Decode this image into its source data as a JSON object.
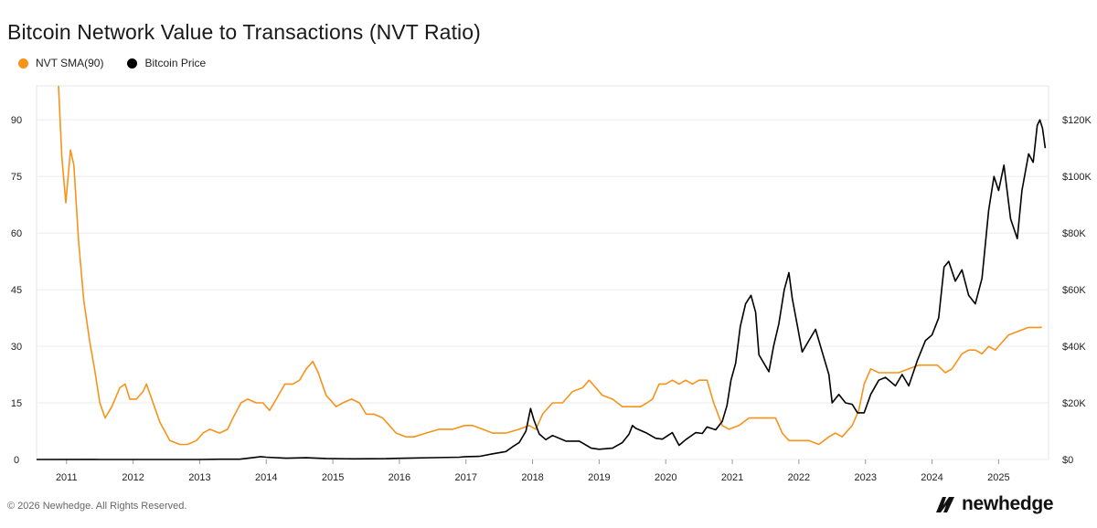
{
  "page": {
    "title": "Bitcoin Network Value to Transactions (NVT Ratio)",
    "copyright": "© 2026 Newhedge. All Rights Reserved.",
    "brand": "newhedge"
  },
  "legend": [
    {
      "label": "NVT SMA(90)",
      "color": "#f7931a"
    },
    {
      "label": "Bitcoin Price",
      "color": "#000000"
    }
  ],
  "chart_data": {
    "type": "line",
    "title": "Bitcoin Network Value to Transactions (NVT Ratio)",
    "x_ticks": [
      "2011",
      "2012",
      "2013",
      "2014",
      "2015",
      "2016",
      "2017",
      "2018",
      "2019",
      "2020",
      "2021",
      "2022",
      "2023",
      "2024",
      "2025"
    ],
    "y_left_ticks": [
      "0",
      "15",
      "30",
      "45",
      "60",
      "75",
      "90"
    ],
    "y_right_ticks": [
      "$0",
      "$20K",
      "$40K",
      "$60K",
      "$80K",
      "$100K",
      "$120K"
    ],
    "y_left_range": [
      0,
      99
    ],
    "y_right_range": [
      0,
      132000
    ],
    "x_range": [
      2010.55,
      2025.75
    ],
    "grid": true,
    "legend_position": "top-left",
    "series": [
      {
        "name": "NVT SMA(90)",
        "axis": "left",
        "color": "#f7931a",
        "points": [
          [
            2010.88,
            99
          ],
          [
            2010.93,
            80
          ],
          [
            2010.99,
            68
          ],
          [
            2011.06,
            82
          ],
          [
            2011.11,
            78
          ],
          [
            2011.18,
            58
          ],
          [
            2011.26,
            42
          ],
          [
            2011.35,
            31
          ],
          [
            2011.42,
            24
          ],
          [
            2011.5,
            15
          ],
          [
            2011.58,
            11
          ],
          [
            2011.68,
            14
          ],
          [
            2011.8,
            19
          ],
          [
            2011.88,
            20
          ],
          [
            2011.95,
            16
          ],
          [
            2012.05,
            16
          ],
          [
            2012.15,
            18
          ],
          [
            2012.2,
            20
          ],
          [
            2012.28,
            16
          ],
          [
            2012.4,
            10
          ],
          [
            2012.55,
            5
          ],
          [
            2012.7,
            4
          ],
          [
            2012.82,
            4
          ],
          [
            2012.95,
            5
          ],
          [
            2013.05,
            7
          ],
          [
            2013.15,
            8
          ],
          [
            2013.3,
            7
          ],
          [
            2013.42,
            8
          ],
          [
            2013.5,
            11
          ],
          [
            2013.62,
            15
          ],
          [
            2013.72,
            16
          ],
          [
            2013.85,
            15
          ],
          [
            2013.95,
            15
          ],
          [
            2014.05,
            13
          ],
          [
            2014.15,
            16
          ],
          [
            2014.28,
            20
          ],
          [
            2014.4,
            20
          ],
          [
            2014.5,
            21
          ],
          [
            2014.6,
            24
          ],
          [
            2014.7,
            26
          ],
          [
            2014.78,
            23
          ],
          [
            2014.9,
            17
          ],
          [
            2015.05,
            14
          ],
          [
            2015.15,
            15
          ],
          [
            2015.28,
            16
          ],
          [
            2015.4,
            15
          ],
          [
            2015.5,
            12
          ],
          [
            2015.62,
            12
          ],
          [
            2015.75,
            11
          ],
          [
            2015.85,
            9
          ],
          [
            2015.95,
            7
          ],
          [
            2016.1,
            6
          ],
          [
            2016.22,
            6
          ],
          [
            2016.4,
            7
          ],
          [
            2016.6,
            8
          ],
          [
            2016.8,
            8
          ],
          [
            2016.98,
            9
          ],
          [
            2017.1,
            9
          ],
          [
            2017.25,
            8
          ],
          [
            2017.4,
            7
          ],
          [
            2017.6,
            7
          ],
          [
            2017.8,
            8
          ],
          [
            2017.95,
            9
          ],
          [
            2018.05,
            8
          ],
          [
            2018.15,
            12
          ],
          [
            2018.3,
            15
          ],
          [
            2018.45,
            15
          ],
          [
            2018.6,
            18
          ],
          [
            2018.75,
            19
          ],
          [
            2018.85,
            21
          ],
          [
            2018.95,
            19
          ],
          [
            2019.05,
            17
          ],
          [
            2019.2,
            16
          ],
          [
            2019.35,
            14
          ],
          [
            2019.5,
            14
          ],
          [
            2019.62,
            14
          ],
          [
            2019.72,
            15
          ],
          [
            2019.8,
            16
          ],
          [
            2019.9,
            20
          ],
          [
            2020.0,
            20
          ],
          [
            2020.1,
            21
          ],
          [
            2020.2,
            20
          ],
          [
            2020.3,
            21
          ],
          [
            2020.4,
            20
          ],
          [
            2020.5,
            21
          ],
          [
            2020.62,
            21
          ],
          [
            2020.72,
            15
          ],
          [
            2020.85,
            9
          ],
          [
            2020.95,
            8
          ],
          [
            2021.1,
            9
          ],
          [
            2021.25,
            11
          ],
          [
            2021.4,
            11
          ],
          [
            2021.55,
            11
          ],
          [
            2021.65,
            11
          ],
          [
            2021.75,
            7
          ],
          [
            2021.85,
            5
          ],
          [
            2022.0,
            5
          ],
          [
            2022.15,
            5
          ],
          [
            2022.3,
            4
          ],
          [
            2022.45,
            6
          ],
          [
            2022.55,
            7
          ],
          [
            2022.65,
            6
          ],
          [
            2022.8,
            9
          ],
          [
            2022.9,
            13
          ],
          [
            2022.98,
            20
          ],
          [
            2023.08,
            24
          ],
          [
            2023.2,
            23
          ],
          [
            2023.35,
            23
          ],
          [
            2023.5,
            23
          ],
          [
            2023.65,
            24
          ],
          [
            2023.8,
            25
          ],
          [
            2023.95,
            25
          ],
          [
            2024.08,
            25
          ],
          [
            2024.2,
            23
          ],
          [
            2024.3,
            24
          ],
          [
            2024.45,
            28
          ],
          [
            2024.55,
            29
          ],
          [
            2024.65,
            29
          ],
          [
            2024.75,
            28
          ],
          [
            2024.85,
            30
          ],
          [
            2024.95,
            29
          ],
          [
            2025.05,
            31
          ],
          [
            2025.15,
            33
          ],
          [
            2025.3,
            34
          ],
          [
            2025.45,
            35
          ],
          [
            2025.55,
            35
          ],
          [
            2025.65,
            35
          ]
        ]
      },
      {
        "name": "Bitcoin Price",
        "axis": "right",
        "color": "#000000",
        "points": [
          [
            2010.55,
            0
          ],
          [
            2011.4,
            20
          ],
          [
            2011.5,
            15
          ],
          [
            2012.0,
            5
          ],
          [
            2012.5,
            8
          ],
          [
            2013.0,
            15
          ],
          [
            2013.3,
            100
          ],
          [
            2013.6,
            100
          ],
          [
            2013.92,
            1000
          ],
          [
            2014.0,
            800
          ],
          [
            2014.3,
            450
          ],
          [
            2014.6,
            600
          ],
          [
            2014.9,
            350
          ],
          [
            2015.3,
            230
          ],
          [
            2015.8,
            300
          ],
          [
            2016.0,
            430
          ],
          [
            2016.5,
            650
          ],
          [
            2016.9,
            800
          ],
          [
            2017.0,
            1000
          ],
          [
            2017.2,
            1100
          ],
          [
            2017.4,
            2000
          ],
          [
            2017.6,
            2800
          ],
          [
            2017.7,
            4500
          ],
          [
            2017.8,
            6000
          ],
          [
            2017.9,
            10000
          ],
          [
            2017.97,
            18000
          ],
          [
            2018.02,
            14000
          ],
          [
            2018.1,
            9000
          ],
          [
            2018.2,
            7000
          ],
          [
            2018.3,
            8500
          ],
          [
            2018.5,
            6500
          ],
          [
            2018.7,
            6500
          ],
          [
            2018.88,
            4000
          ],
          [
            2019.0,
            3600
          ],
          [
            2019.2,
            4000
          ],
          [
            2019.35,
            6000
          ],
          [
            2019.45,
            9000
          ],
          [
            2019.5,
            12000
          ],
          [
            2019.55,
            11000
          ],
          [
            2019.7,
            9500
          ],
          [
            2019.85,
            7500
          ],
          [
            2019.95,
            7200
          ],
          [
            2020.1,
            9500
          ],
          [
            2020.2,
            5000
          ],
          [
            2020.3,
            7000
          ],
          [
            2020.45,
            9500
          ],
          [
            2020.55,
            9200
          ],
          [
            2020.62,
            11500
          ],
          [
            2020.75,
            10500
          ],
          [
            2020.85,
            13500
          ],
          [
            2020.92,
            19000
          ],
          [
            2020.98,
            28000
          ],
          [
            2021.05,
            34000
          ],
          [
            2021.12,
            47000
          ],
          [
            2021.2,
            55000
          ],
          [
            2021.28,
            58000
          ],
          [
            2021.35,
            52000
          ],
          [
            2021.4,
            37000
          ],
          [
            2021.5,
            33000
          ],
          [
            2021.55,
            31000
          ],
          [
            2021.62,
            40000
          ],
          [
            2021.7,
            48000
          ],
          [
            2021.78,
            60000
          ],
          [
            2021.85,
            66000
          ],
          [
            2021.9,
            57000
          ],
          [
            2021.98,
            47000
          ],
          [
            2022.05,
            38000
          ],
          [
            2022.15,
            42000
          ],
          [
            2022.25,
            46000
          ],
          [
            2022.35,
            38000
          ],
          [
            2022.45,
            30000
          ],
          [
            2022.5,
            20000
          ],
          [
            2022.6,
            23000
          ],
          [
            2022.7,
            20000
          ],
          [
            2022.8,
            19500
          ],
          [
            2022.88,
            16500
          ],
          [
            2022.98,
            16500
          ],
          [
            2023.08,
            23000
          ],
          [
            2023.2,
            28000
          ],
          [
            2023.3,
            29000
          ],
          [
            2023.45,
            26000
          ],
          [
            2023.55,
            30000
          ],
          [
            2023.65,
            26000
          ],
          [
            2023.78,
            35000
          ],
          [
            2023.9,
            42000
          ],
          [
            2024.0,
            44000
          ],
          [
            2024.1,
            50000
          ],
          [
            2024.18,
            68000
          ],
          [
            2024.25,
            70000
          ],
          [
            2024.35,
            63000
          ],
          [
            2024.45,
            67000
          ],
          [
            2024.55,
            58000
          ],
          [
            2024.65,
            55000
          ],
          [
            2024.75,
            64000
          ],
          [
            2024.85,
            88000
          ],
          [
            2024.93,
            100000
          ],
          [
            2025.0,
            95000
          ],
          [
            2025.08,
            104000
          ],
          [
            2025.18,
            85000
          ],
          [
            2025.28,
            78000
          ],
          [
            2025.35,
            95000
          ],
          [
            2025.45,
            108000
          ],
          [
            2025.52,
            105000
          ],
          [
            2025.58,
            118000
          ],
          [
            2025.62,
            120000
          ],
          [
            2025.66,
            117000
          ],
          [
            2025.7,
            110000
          ]
        ]
      }
    ]
  }
}
